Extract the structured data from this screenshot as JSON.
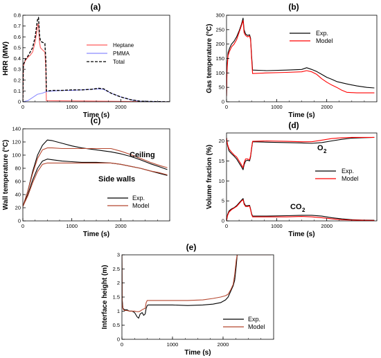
{
  "colors": {
    "black": "#000000",
    "red": "#ff0000",
    "blue": "#8a8aff",
    "pink": "#ff5a5a",
    "brown": "#b5462e"
  },
  "chart_data": [
    {
      "id": "a",
      "panel_label": "(a)",
      "type": "line",
      "xlabel": "Time (s)",
      "ylabel": "HRR (MW)",
      "xlim": [
        0,
        3000
      ],
      "ylim": [
        0,
        0.8
      ],
      "xticks": [
        0,
        1000,
        2000
      ],
      "yticks": [
        0,
        0.1,
        0.2,
        0.3,
        0.4,
        0.5,
        0.6,
        0.7,
        0.8
      ],
      "legend_position": "top-right",
      "series": [
        {
          "name": "Heptane",
          "color": "#ff5a5a",
          "dash": "solid",
          "x": [
            0,
            10,
            50,
            100,
            150,
            200,
            250,
            300,
            320,
            340,
            360,
            400,
            450,
            470,
            480,
            3000
          ],
          "y": [
            0,
            0.33,
            0.38,
            0.41,
            0.43,
            0.46,
            0.55,
            0.7,
            0.72,
            0.55,
            0.5,
            0.48,
            0.46,
            0.3,
            0.01,
            0
          ]
        },
        {
          "name": "PMMA",
          "color": "#8a8aff",
          "dash": "solid",
          "x": [
            0,
            100,
            200,
            300,
            400,
            460,
            480,
            600,
            800,
            1000,
            1200,
            1400,
            1550,
            1650,
            1800,
            2000,
            2200,
            2400,
            3000
          ],
          "y": [
            0,
            0.01,
            0.04,
            0.07,
            0.08,
            0.09,
            0.095,
            0.1,
            0.105,
            0.105,
            0.11,
            0.115,
            0.12,
            0.115,
            0.08,
            0.045,
            0.02,
            0.005,
            0
          ]
        },
        {
          "name": "Total",
          "color": "#000000",
          "dash": "dashed",
          "x": [
            0,
            10,
            50,
            100,
            150,
            200,
            250,
            300,
            320,
            340,
            360,
            400,
            450,
            470,
            480,
            500,
            600,
            800,
            1000,
            1200,
            1400,
            1550,
            1650,
            1800,
            2000,
            2200,
            2400,
            3000
          ],
          "y": [
            0,
            0.34,
            0.39,
            0.42,
            0.46,
            0.5,
            0.6,
            0.76,
            0.78,
            0.62,
            0.56,
            0.55,
            0.54,
            0.38,
            0.1,
            0.1,
            0.105,
            0.105,
            0.11,
            0.11,
            0.115,
            0.125,
            0.12,
            0.08,
            0.045,
            0.02,
            0.005,
            0
          ]
        }
      ]
    },
    {
      "id": "b",
      "panel_label": "(b)",
      "type": "line",
      "xlabel": "Time (s)",
      "ylabel": "Gas temperature (°C)",
      "xlim": [
        0,
        3000
      ],
      "ylim": [
        0,
        300
      ],
      "xticks": [
        0,
        1000,
        2000
      ],
      "yticks": [
        0,
        50,
        100,
        150,
        200,
        250,
        300
      ],
      "legend_position": "top-right",
      "series": [
        {
          "name": "Exp.",
          "color": "#000000",
          "dash": "solid",
          "x": [
            0,
            10,
            30,
            60,
            100,
            150,
            200,
            250,
            300,
            330,
            350,
            380,
            420,
            460,
            480,
            500,
            520,
            800,
            1200,
            1500,
            1600,
            1700,
            1800,
            1900,
            2000,
            2100,
            2200,
            2400,
            2600,
            2800,
            2950
          ],
          "y": [
            20,
            120,
            170,
            185,
            200,
            210,
            225,
            245,
            270,
            290,
            250,
            235,
            230,
            232,
            220,
            160,
            110,
            108,
            110,
            112,
            118,
            112,
            105,
            95,
            85,
            78,
            70,
            62,
            55,
            50,
            48
          ]
        },
        {
          "name": "Model",
          "color": "#ff0000",
          "dash": "solid",
          "x": [
            0,
            10,
            30,
            60,
            100,
            150,
            200,
            250,
            300,
            330,
            350,
            380,
            420,
            460,
            480,
            500,
            520,
            800,
            1200,
            1500,
            1600,
            1700,
            1800,
            1900,
            2000,
            2100,
            2200,
            2300,
            2400,
            2600,
            2800,
            2950
          ],
          "y": [
            20,
            110,
            160,
            175,
            190,
            200,
            215,
            240,
            265,
            282,
            240,
            230,
            225,
            228,
            215,
            150,
            98,
            100,
            102,
            104,
            108,
            104,
            95,
            80,
            68,
            58,
            50,
            40,
            33,
            31,
            31,
            31
          ]
        }
      ]
    },
    {
      "id": "c",
      "panel_label": "(c)",
      "type": "line",
      "xlabel": "Time (s)",
      "ylabel": "Wall temperature (°C)",
      "xlim": [
        0,
        3000
      ],
      "ylim": [
        0,
        140
      ],
      "xticks": [
        0,
        1000,
        2000
      ],
      "yticks": [
        0,
        20,
        40,
        60,
        80,
        100,
        120,
        140
      ],
      "legend_position": "bottom-center",
      "annotations": [
        "Ceiling",
        "Side walls"
      ],
      "series": [
        {
          "name": "Exp.",
          "color": "#000000",
          "dash": "solid",
          "x": [
            0,
            100,
            200,
            300,
            400,
            500,
            600,
            800,
            1000,
            1200,
            1500,
            1800,
            2000,
            2200,
            2400,
            2600,
            2800,
            2950
          ],
          "y": [
            22,
            45,
            75,
            100,
            115,
            123,
            122,
            118,
            114,
            111,
            108,
            105,
            102,
            98,
            93,
            87,
            82,
            78
          ]
        },
        {
          "name": "Model",
          "color": "#b5462e",
          "dash": "solid",
          "x": [
            0,
            100,
            200,
            300,
            400,
            500,
            600,
            800,
            1000,
            1200,
            1500,
            1800,
            2000,
            2200,
            2400,
            2600,
            2800,
            2950
          ],
          "y": [
            22,
            45,
            72,
            95,
            108,
            111,
            111,
            110,
            110,
            110,
            110,
            110,
            106,
            101,
            95,
            89,
            84,
            81
          ]
        },
        {
          "name": "Exp. side walls",
          "color": "#000000",
          "dash": "solid",
          "x": [
            0,
            100,
            200,
            300,
            400,
            500,
            600,
            800,
            1000,
            1200,
            1500,
            1800,
            2000,
            2200,
            2400,
            2600,
            2800,
            2950
          ],
          "y": [
            22,
            40,
            62,
            80,
            91,
            94,
            93,
            91,
            90,
            89,
            89,
            88,
            86,
            83,
            80,
            76,
            72,
            69
          ]
        },
        {
          "name": "Model side walls",
          "color": "#b5462e",
          "dash": "solid",
          "x": [
            0,
            100,
            200,
            300,
            400,
            500,
            600,
            800,
            1000,
            1200,
            1500,
            1800,
            2000,
            2200,
            2400,
            2600,
            2800,
            2950
          ],
          "y": [
            22,
            38,
            58,
            75,
            86,
            88,
            88,
            88,
            88,
            88,
            88,
            88,
            86,
            83,
            80,
            76,
            73,
            70
          ]
        }
      ]
    },
    {
      "id": "d",
      "panel_label": "(d)",
      "type": "line",
      "xlabel": "Time (s)",
      "ylabel": "Volume fraction (%)",
      "xlim": [
        0,
        3000
      ],
      "ylim": [
        0,
        22
      ],
      "xticks": [
        0,
        1000,
        2000
      ],
      "yticks": [
        0,
        5,
        10,
        15,
        20
      ],
      "legend_position": "right",
      "annotations": [
        "O",
        "2",
        "CO",
        "2"
      ],
      "series": [
        {
          "name": "Exp.",
          "color": "#000000",
          "dash": "solid",
          "x": [
            0,
            20,
            50,
            100,
            150,
            200,
            250,
            300,
            330,
            350,
            380,
            420,
            460,
            480,
            500,
            520,
            800,
            1200,
            1500,
            1700,
            1900,
            2100,
            2300,
            2500,
            2700,
            2950
          ],
          "y": [
            20.8,
            19,
            17.5,
            16.8,
            16.2,
            15.5,
            14.5,
            13.5,
            12.8,
            14,
            15,
            15.2,
            15,
            16,
            18,
            19.8,
            19.7,
            19.6,
            19.5,
            19.4,
            19.6,
            20,
            20.4,
            20.7,
            20.8,
            20.9
          ]
        },
        {
          "name": "Model",
          "color": "#ff0000",
          "dash": "solid",
          "x": [
            0,
            20,
            50,
            100,
            150,
            200,
            250,
            300,
            330,
            350,
            380,
            420,
            460,
            480,
            500,
            520,
            800,
            1200,
            1500,
            1700,
            1900,
            2100,
            2300,
            2500,
            2700,
            2950
          ],
          "y": [
            20.8,
            19.2,
            18,
            17.2,
            16.5,
            16,
            15,
            14,
            13.3,
            14.5,
            15.5,
            15.5,
            15.3,
            16.3,
            18.3,
            19.9,
            20,
            19.9,
            19.8,
            19.8,
            20.2,
            20.6,
            20.8,
            20.9,
            20.9,
            20.9
          ]
        },
        {
          "name": "Exp. CO2",
          "color": "#000000",
          "dash": "solid",
          "x": [
            0,
            20,
            50,
            100,
            150,
            200,
            250,
            300,
            330,
            350,
            380,
            420,
            460,
            480,
            500,
            520,
            800,
            1200,
            1500,
            1700,
            1900,
            2100,
            2300,
            2500,
            2700,
            2950
          ],
          "y": [
            0,
            1.5,
            2.5,
            3,
            3.3,
            3.8,
            4.5,
            5.2,
            5.6,
            4.5,
            3.8,
            3.8,
            3.9,
            3,
            1.8,
            1.2,
            1.2,
            1.3,
            1.4,
            1.4,
            1.2,
            0.8,
            0.5,
            0.3,
            0.2,
            0.15
          ]
        },
        {
          "name": "Model CO2",
          "color": "#ff0000",
          "dash": "solid",
          "x": [
            0,
            20,
            50,
            100,
            150,
            200,
            250,
            300,
            330,
            350,
            380,
            420,
            460,
            480,
            500,
            520,
            800,
            1200,
            1500,
            1700,
            1900,
            2100,
            2300,
            2500,
            2700,
            2950
          ],
          "y": [
            0,
            1.3,
            2.2,
            2.8,
            3.2,
            3.6,
            4.3,
            5,
            5.3,
            4.2,
            3.6,
            3.6,
            3.7,
            2.8,
            1.6,
            1.0,
            1.0,
            1.0,
            1.1,
            1.0,
            0.8,
            0.5,
            0.3,
            0.2,
            0.15,
            0.1
          ]
        }
      ]
    },
    {
      "id": "e",
      "panel_label": "(e)",
      "type": "line",
      "xlabel": "Time (s)",
      "ylabel": "Interface height (m)",
      "xlim": [
        0,
        3000
      ],
      "ylim": [
        0,
        3
      ],
      "xticks": [
        0,
        1000,
        2000
      ],
      "yticks": [
        0,
        0.5,
        1,
        1.5,
        2,
        2.5,
        3
      ],
      "legend_position": "bottom-right",
      "series": [
        {
          "name": "Exp.",
          "color": "#000000",
          "dash": "solid",
          "x": [
            0,
            5,
            20,
            50,
            100,
            150,
            200,
            250,
            300,
            330,
            360,
            400,
            430,
            460,
            480,
            500,
            520,
            700,
            1000,
            1300,
            1600,
            1800,
            1950,
            2050,
            2100,
            2150,
            2200,
            2230,
            2260,
            2280,
            2950
          ],
          "y": [
            3,
            1.4,
            1.1,
            1.05,
            1.05,
            1.0,
            1.0,
            0.95,
            0.8,
            0.75,
            0.9,
            0.95,
            0.85,
            0.9,
            1.1,
            1.2,
            1.22,
            1.22,
            1.22,
            1.2,
            1.22,
            1.25,
            1.3,
            1.4,
            1.5,
            1.7,
            1.9,
            2.1,
            2.6,
            3.0,
            3.0
          ]
        },
        {
          "name": "Model",
          "color": "#b5462e",
          "dash": "solid",
          "x": [
            0,
            5,
            20,
            50,
            100,
            150,
            200,
            250,
            300,
            330,
            360,
            400,
            430,
            460,
            480,
            500,
            520,
            700,
            1000,
            1300,
            1600,
            1800,
            1950,
            2050,
            2100,
            2150,
            2200,
            2230,
            2260,
            2280,
            2950
          ],
          "y": [
            3,
            1.3,
            1.08,
            1.02,
            1.02,
            1.0,
            1.0,
            1.0,
            0.98,
            0.98,
            1.0,
            1.05,
            1.08,
            1.1,
            1.3,
            1.38,
            1.38,
            1.38,
            1.38,
            1.38,
            1.4,
            1.45,
            1.5,
            1.55,
            1.6,
            1.75,
            1.95,
            2.3,
            2.8,
            3.0,
            3.0
          ]
        }
      ]
    }
  ]
}
